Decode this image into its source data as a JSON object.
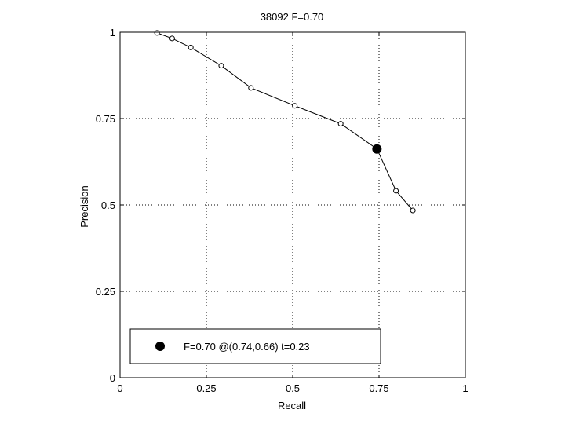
{
  "chart_data": {
    "type": "line",
    "title": "38092 F=0.70",
    "xlabel": "Recall",
    "ylabel": "Precision",
    "xlim": [
      0,
      1
    ],
    "ylim": [
      0,
      1
    ],
    "grid": true,
    "grid_style": "dotted",
    "xticks": [
      0,
      0.25,
      0.5,
      0.75,
      1
    ],
    "yticks": [
      0,
      0.25,
      0.5,
      0.75,
      1
    ],
    "xtick_labels": [
      "0",
      "0.25",
      "0.5",
      "0.75",
      "1"
    ],
    "ytick_labels": [
      "0",
      "0.25",
      "0.5",
      "0.75",
      "1"
    ],
    "series": [
      {
        "marker": "open-circle",
        "color": "#000000",
        "x": [
          0.107,
          0.151,
          0.205,
          0.293,
          0.379,
          0.506,
          0.639,
          0.744,
          0.799,
          0.848
        ],
        "y": [
          0.998,
          0.982,
          0.956,
          0.903,
          0.839,
          0.787,
          0.735,
          0.662,
          0.541,
          0.484
        ]
      }
    ],
    "highlight": {
      "x": 0.744,
      "y": 0.662,
      "marker": "filled-circle",
      "color": "#000000"
    },
    "legend": {
      "position": "bottom-left",
      "entries": [
        {
          "label": "F=0.70 @(0.74,0.66) t=0.23",
          "marker": "filled-circle"
        }
      ]
    }
  }
}
